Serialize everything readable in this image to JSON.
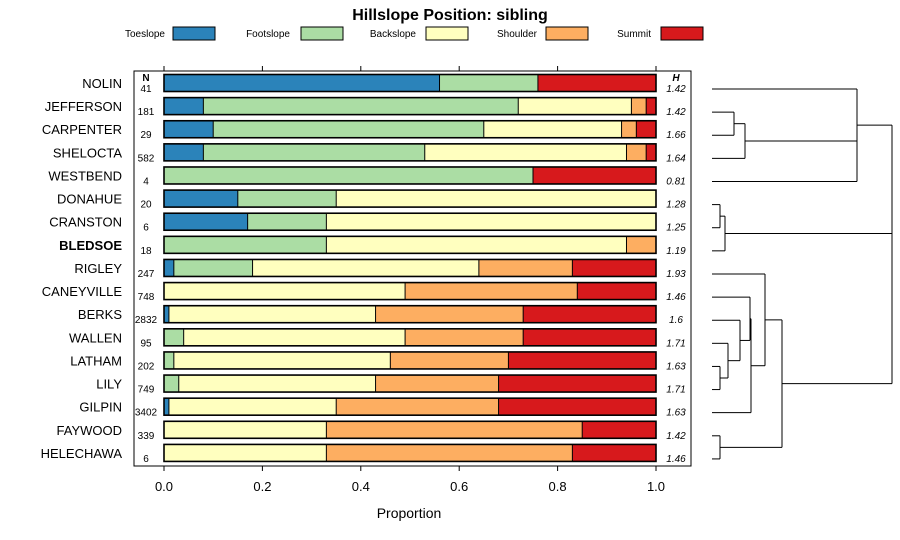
{
  "chart_data": {
    "type": "bar",
    "orientation": "horizontal-stacked",
    "title": "Hillslope Position: sibling",
    "xlabel": "Proportion",
    "ylabel": "",
    "xlim": [
      0,
      1
    ],
    "x_ticks": [
      "0.0",
      "0.2",
      "0.4",
      "0.6",
      "0.8",
      "1.0"
    ],
    "x_tick_values": [
      0,
      0.2,
      0.4,
      0.6,
      0.8,
      1.0
    ],
    "n_header": "N",
    "h_header": "H",
    "legend": [
      {
        "name": "Toeslope",
        "color": "#2B83BA"
      },
      {
        "name": "Footslope",
        "color": "#ABDDA4"
      },
      {
        "name": "Backslope",
        "color": "#FFFFBF"
      },
      {
        "name": "Shoulder",
        "color": "#FDAE61"
      },
      {
        "name": "Summit",
        "color": "#D7191C"
      }
    ],
    "categories": [
      "NOLIN",
      "JEFFERSON",
      "CARPENTER",
      "SHELOCTA",
      "WESTBEND",
      "DONAHUE",
      "CRANSTON",
      "BLEDSOE",
      "RIGLEY",
      "CANEYVILLE",
      "BERKS",
      "WALLEN",
      "LATHAM",
      "LILY",
      "GILPIN",
      "FAYWOOD",
      "HELECHAWA"
    ],
    "highlighted": "BLEDSOE",
    "n": [
      "41",
      "181",
      "29",
      "582",
      "4",
      "20",
      "6",
      "18",
      "247",
      "748",
      "2832",
      "95",
      "202",
      "749",
      "3402",
      "339",
      "6"
    ],
    "h": [
      "1.42",
      "1.42",
      "1.66",
      "1.64",
      "0.81",
      "1.28",
      "1.25",
      "1.19",
      "1.93",
      "1.46",
      "1.6",
      "1.71",
      "1.63",
      "1.71",
      "1.63",
      "1.42",
      "1.46"
    ],
    "series": [
      {
        "name": "Toeslope",
        "values": [
          0.56,
          0.08,
          0.1,
          0.08,
          0.0,
          0.15,
          0.17,
          0.0,
          0.02,
          0.0,
          0.01,
          0.0,
          0.0,
          0.0,
          0.01,
          0.0,
          0.0
        ]
      },
      {
        "name": "Footslope",
        "values": [
          0.2,
          0.64,
          0.55,
          0.45,
          0.75,
          0.2,
          0.16,
          0.33,
          0.16,
          0.0,
          0.0,
          0.04,
          0.02,
          0.03,
          0.0,
          0.0,
          0.0
        ]
      },
      {
        "name": "Backslope",
        "values": [
          0.0,
          0.23,
          0.28,
          0.41,
          0.0,
          0.65,
          0.67,
          0.61,
          0.46,
          0.49,
          0.42,
          0.45,
          0.44,
          0.4,
          0.34,
          0.33,
          0.33
        ]
      },
      {
        "name": "Shoulder",
        "values": [
          0.0,
          0.03,
          0.03,
          0.04,
          0.0,
          0.0,
          0.0,
          0.06,
          0.19,
          0.35,
          0.3,
          0.24,
          0.24,
          0.25,
          0.33,
          0.52,
          0.5
        ]
      },
      {
        "name": "Summit",
        "values": [
          0.24,
          0.02,
          0.04,
          0.02,
          0.25,
          0.0,
          0.0,
          0.0,
          0.17,
          0.16,
          0.27,
          0.27,
          0.3,
          0.32,
          0.32,
          0.15,
          0.17
        ]
      }
    ]
  }
}
